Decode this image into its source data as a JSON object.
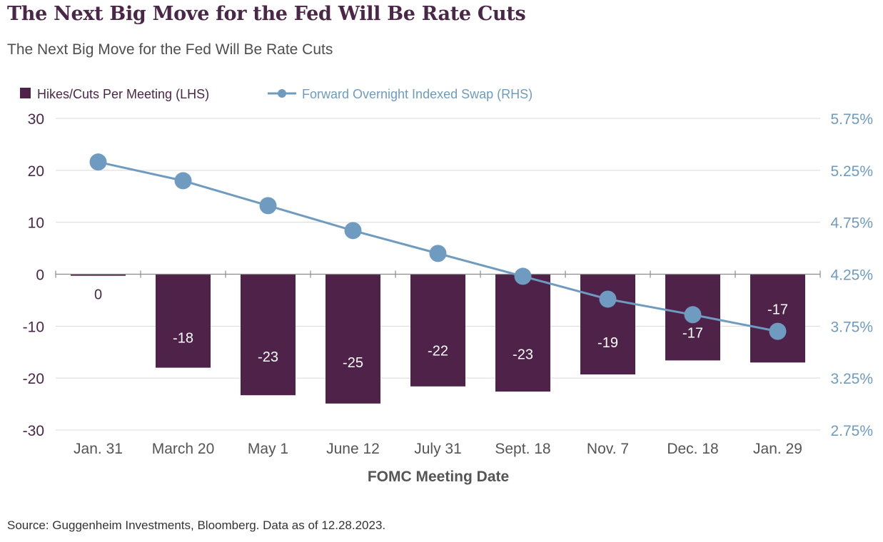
{
  "page": {
    "title": "The Next Big Move for the Fed Will Be Rate Cuts",
    "subtitle": "The Next Big Move for the Fed Will Be Rate Cuts",
    "source": "Source: Guggenheim Investments, Bloomberg. Data as of 12.28.2023."
  },
  "chart_data": {
    "type": "bar",
    "title": "The Next Big Move for the Fed Will Be Rate Cuts",
    "subtitle": "The Next Big Move for the Fed Will Be Rate Cuts",
    "xlabel": "FOMC Meeting Date",
    "ylabel": "",
    "categories": [
      "Jan. 31",
      "March 20",
      "May 1",
      "June 12",
      "July 31",
      "Sept. 18",
      "Nov. 7",
      "Dec. 18",
      "Jan. 29"
    ],
    "ylim": [
      -30,
      30
    ],
    "y_ticks": [
      "30",
      "20",
      "10",
      "0",
      "-10",
      "-20",
      "-30"
    ],
    "y2lim": [
      2.75,
      5.75
    ],
    "y2_ticks": [
      "5.75%",
      "5.25%",
      "4.75%",
      "4.25%",
      "3.75%",
      "3.25%",
      "2.75%"
    ],
    "series": [
      {
        "name": "Hikes/Cuts Per Meeting (LHS)",
        "type": "bar",
        "axis": "left",
        "color": "#4f2349",
        "values": [
          -0.3,
          -18,
          -23.3,
          -24.9,
          -21.6,
          -22.6,
          -19.3,
          -16.6,
          -17
        ],
        "labels": [
          "0",
          "-18",
          "-23",
          "-25",
          "-22",
          "-23",
          "-19",
          "-17",
          "-17"
        ]
      },
      {
        "name": "Forward Overnight Indexed Swap (RHS)",
        "type": "line",
        "axis": "right",
        "color": "#6f9bc1",
        "values": [
          5.33,
          5.15,
          4.91,
          4.67,
          4.45,
          4.23,
          4.01,
          3.86,
          3.7
        ]
      }
    ],
    "grid": true,
    "legend": "top-left"
  }
}
